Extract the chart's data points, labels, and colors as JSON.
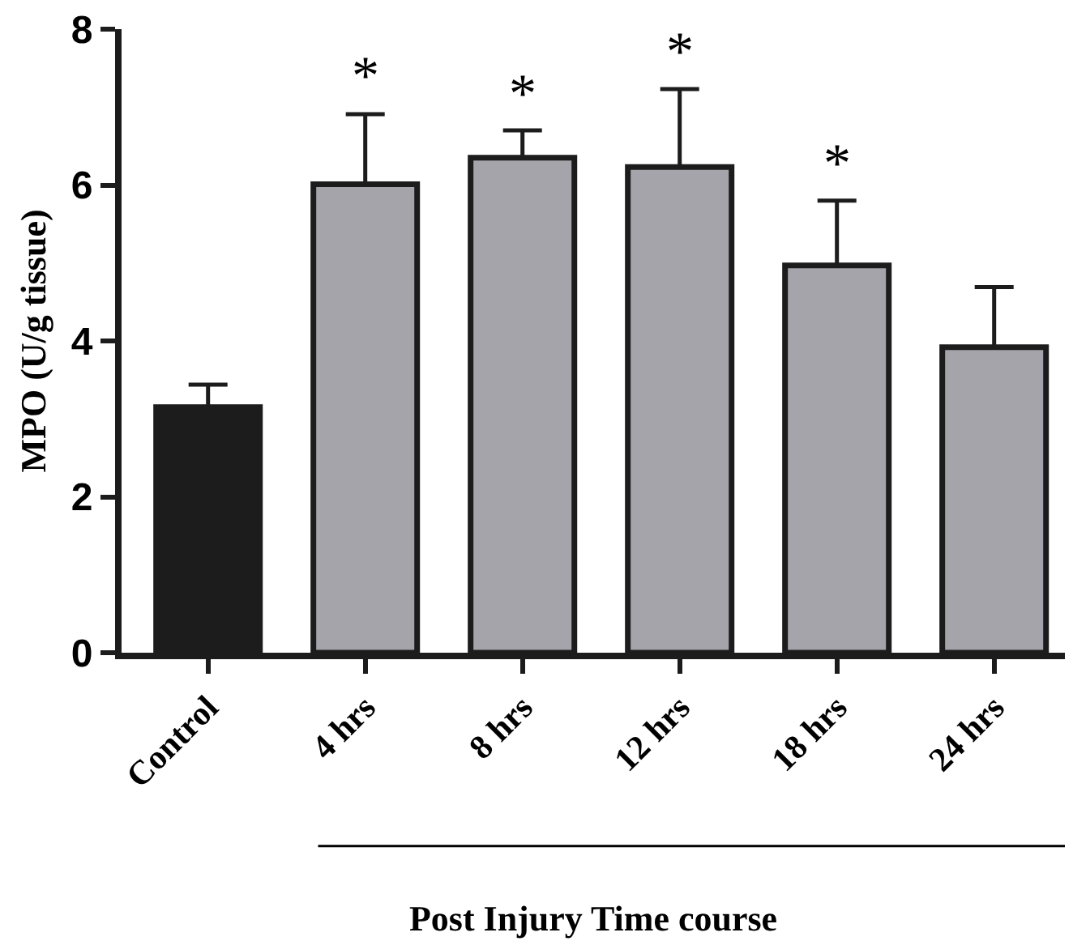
{
  "chart_data": {
    "type": "bar",
    "xlabel": "Post Injury Time course",
    "ylabel": "MPO (U/g tissue)",
    "categories": [
      "Control",
      "4 hrs",
      "8 hrs",
      "12 hrs",
      "18 hrs",
      "24 hrs"
    ],
    "values": [
      3.15,
      6.01,
      6.35,
      6.23,
      4.97,
      3.92
    ],
    "colors": [
      "#1c1c1c",
      "#a5a4aa",
      "#a5a4aa",
      "#a5a4aa",
      "#a5a4aa",
      "#a5a4aa"
    ],
    "errors": [
      [
        3.15,
        3.44
      ],
      [
        6.01,
        6.91
      ],
      [
        6.35,
        6.7
      ],
      [
        6.23,
        7.23
      ],
      [
        4.97,
        5.8
      ],
      [
        3.92,
        4.69
      ]
    ],
    "ylim": [
      0,
      8
    ],
    "yticks": [
      0,
      2,
      4,
      6,
      8
    ],
    "annotations": [
      {
        "text": "*",
        "x": "4 hrs",
        "y": 6.91
      },
      {
        "text": "*",
        "x": "8 hrs",
        "y": 6.7
      },
      {
        "text": "*",
        "x": "12 hrs",
        "y": 7.23
      },
      {
        "text": "*",
        "x": "18 hrs",
        "y": 5.8
      }
    ]
  }
}
